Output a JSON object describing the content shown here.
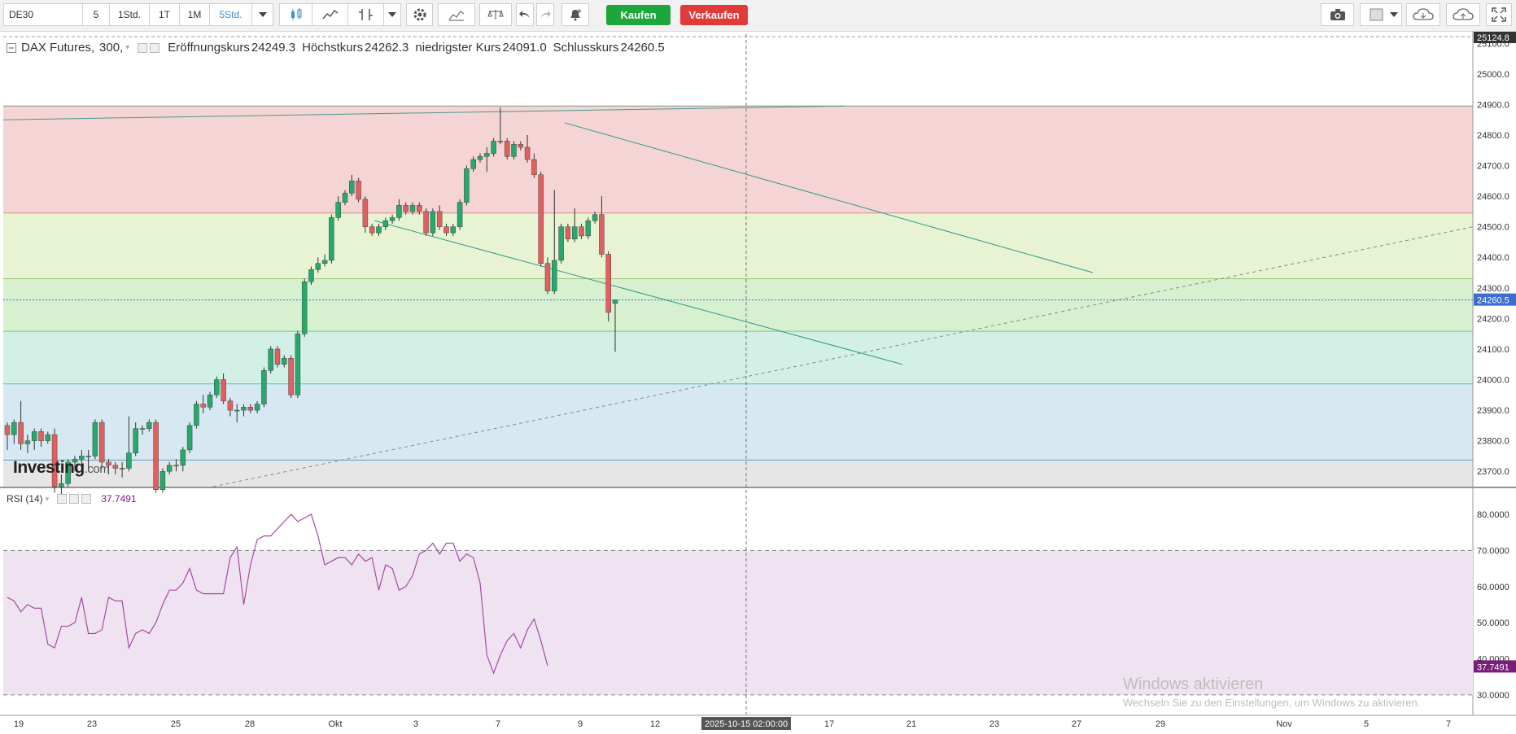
{
  "toolbar": {
    "symbol": "DE30",
    "intervals": [
      "5",
      "1Std.",
      "1T",
      "1M",
      "5Std."
    ],
    "buy_label": "Kaufen",
    "sell_label": "Verkaufen",
    "buy_color": "#1ea53c",
    "sell_color": "#e03a3a"
  },
  "legend": {
    "symbol": "DAX Futures,",
    "interval": "300,",
    "open_label": "Eröffnungskurs",
    "open": "24249.3",
    "high_label": "Höchstkurs",
    "high": "24262.3",
    "low_label": "niedrigster Kurs",
    "low": "24091.0",
    "close_label": "Schlusskurs",
    "close": "24260.5"
  },
  "rsi_legend": {
    "label": "RSI (14)",
    "value": "37.7491"
  },
  "brand": {
    "name": "Investing",
    "suffix": ".com"
  },
  "watermark": {
    "title": "Windows aktivieren",
    "subtitle": "Wechseln Sie zu den Einstellungen, um Windows zu aktivieren."
  },
  "chart_data": {
    "type": "candlestick",
    "colors": {
      "up": "#26a96c",
      "down": "#e35f5f"
    },
    "price_axis": {
      "ylim": [
        23650,
        25130
      ],
      "ticks": [
        "25100.0",
        "25000.0",
        "24900.0",
        "24800.0",
        "24700.0",
        "24600.0",
        "24500.0",
        "24400.0",
        "24300.0",
        "24200.0",
        "24100.0",
        "24000.0",
        "23900.0",
        "23800.0",
        "23700.0"
      ],
      "top_label": "25124.8",
      "last_price_label": "24260.5"
    },
    "rsi_axis": {
      "ylim": [
        25,
        87
      ],
      "ticks": [
        "80.0000",
        "70.0000",
        "60.0000",
        "50.0000",
        "40.0000",
        "30.0000"
      ],
      "last_label": "37.7491",
      "upper_level": 70,
      "lower_level": 30
    },
    "x_axis": {
      "labels": [
        "19",
        "23",
        "25",
        "28",
        "Okt",
        "3",
        "7",
        "9",
        "12",
        "17",
        "21",
        "23",
        "27",
        "29",
        "Nov",
        "5",
        "7"
      ],
      "crosshair_label": "2025-10-15 02:00:00"
    },
    "fib_levels": [
      24895,
      24545,
      24330,
      24158,
      23986,
      23737
    ],
    "fib_zone_colors": [
      "#f4d4d4",
      "#e8f3d3",
      "#d6f0d0",
      "#d2f0e6",
      "#d6e8f2",
      "#e6e6e6"
    ],
    "candles": [
      [
        23850,
        23820,
        23860,
        23770
      ],
      [
        23820,
        23860,
        23870,
        23790
      ],
      [
        23860,
        23790,
        23930,
        23770
      ],
      [
        23790,
        23800,
        23820,
        23760
      ],
      [
        23800,
        23830,
        23840,
        23770
      ],
      [
        23830,
        23800,
        23840,
        23780
      ],
      [
        23800,
        23820,
        23830,
        23790
      ],
      [
        23820,
        23650,
        23840,
        23630
      ],
      [
        23650,
        23660,
        23690,
        23620
      ],
      [
        23660,
        23730,
        23740,
        23650
      ],
      [
        23730,
        23740,
        23750,
        23700
      ],
      [
        23740,
        23750,
        23770,
        23720
      ],
      [
        23750,
        23750,
        23770,
        23700
      ],
      [
        23750,
        23860,
        23870,
        23740
      ],
      [
        23860,
        23730,
        23870,
        23710
      ],
      [
        23730,
        23720,
        23740,
        23690
      ],
      [
        23720,
        23710,
        23730,
        23690
      ],
      [
        23710,
        23710,
        23730,
        23680
      ],
      [
        23710,
        23760,
        23880,
        23700
      ],
      [
        23760,
        23840,
        23860,
        23750
      ],
      [
        23840,
        23840,
        23850,
        23820
      ],
      [
        23840,
        23860,
        23870,
        23830
      ],
      [
        23860,
        23640,
        23870,
        23630
      ],
      [
        23640,
        23700,
        23710,
        23630
      ],
      [
        23700,
        23720,
        23730,
        23690
      ],
      [
        23720,
        23720,
        23740,
        23700
      ],
      [
        23720,
        23770,
        23780,
        23700
      ],
      [
        23770,
        23850,
        23860,
        23760
      ],
      [
        23850,
        23920,
        23930,
        23840
      ],
      [
        23920,
        23910,
        23950,
        23890
      ],
      [
        23910,
        23950,
        23960,
        23900
      ],
      [
        23950,
        24000,
        24010,
        23940
      ],
      [
        24000,
        23930,
        24020,
        23920
      ],
      [
        23930,
        23900,
        23940,
        23880
      ],
      [
        23900,
        23900,
        23920,
        23860
      ],
      [
        23900,
        23910,
        23920,
        23880
      ],
      [
        23910,
        23900,
        23920,
        23890
      ],
      [
        23900,
        23920,
        23930,
        23890
      ],
      [
        23920,
        24030,
        24040,
        23910
      ],
      [
        24030,
        24100,
        24110,
        24020
      ],
      [
        24100,
        24050,
        24110,
        24040
      ],
      [
        24050,
        24070,
        24080,
        24040
      ],
      [
        24070,
        23950,
        24080,
        23940
      ],
      [
        23950,
        24150,
        24160,
        23940
      ],
      [
        24150,
        24320,
        24330,
        24140
      ],
      [
        24320,
        24360,
        24370,
        24310
      ],
      [
        24360,
        24380,
        24400,
        24350
      ],
      [
        24380,
        24390,
        24410,
        24370
      ],
      [
        24390,
        24530,
        24540,
        24380
      ],
      [
        24530,
        24580,
        24600,
        24520
      ],
      [
        24580,
        24610,
        24620,
        24570
      ],
      [
        24610,
        24650,
        24670,
        24600
      ],
      [
        24650,
        24590,
        24660,
        24580
      ],
      [
        24590,
        24500,
        24600,
        24480
      ],
      [
        24500,
        24480,
        24510,
        24470
      ],
      [
        24480,
        24500,
        24510,
        24470
      ],
      [
        24500,
        24520,
        24530,
        24490
      ],
      [
        24520,
        24530,
        24540,
        24510
      ],
      [
        24530,
        24570,
        24590,
        24520
      ],
      [
        24570,
        24550,
        24580,
        24540
      ],
      [
        24550,
        24570,
        24580,
        24540
      ],
      [
        24570,
        24550,
        24580,
        24540
      ],
      [
        24550,
        24480,
        24560,
        24470
      ],
      [
        24480,
        24550,
        24560,
        24470
      ],
      [
        24550,
        24500,
        24570,
        24490
      ],
      [
        24500,
        24480,
        24510,
        24470
      ],
      [
        24480,
        24500,
        24510,
        24470
      ],
      [
        24500,
        24580,
        24590,
        24490
      ],
      [
        24580,
        24690,
        24700,
        24570
      ],
      [
        24690,
        24720,
        24730,
        24680
      ],
      [
        24720,
        24730,
        24740,
        24710
      ],
      [
        24730,
        24740,
        24760,
        24680
      ],
      [
        24740,
        24780,
        24790,
        24730
      ],
      [
        24780,
        24780,
        24890,
        24770
      ],
      [
        24780,
        24730,
        24790,
        24720
      ],
      [
        24730,
        24770,
        24780,
        24720
      ],
      [
        24770,
        24760,
        24780,
        24750
      ],
      [
        24760,
        24720,
        24800,
        24710
      ],
      [
        24720,
        24670,
        24740,
        24660
      ],
      [
        24670,
        24380,
        24680,
        24370
      ],
      [
        24380,
        24290,
        24400,
        24280
      ],
      [
        24290,
        24390,
        24620,
        24280
      ],
      [
        24390,
        24500,
        24510,
        24380
      ],
      [
        24500,
        24460,
        24510,
        24450
      ],
      [
        24460,
        24500,
        24560,
        24450
      ],
      [
        24500,
        24470,
        24510,
        24460
      ],
      [
        24470,
        24520,
        24530,
        24460
      ],
      [
        24520,
        24540,
        24550,
        24510
      ],
      [
        24540,
        24410,
        24600,
        24400
      ],
      [
        24410,
        24220,
        24420,
        24190
      ],
      [
        24249.3,
        24260.5,
        24262.3,
        24091.0
      ]
    ],
    "rsi": [
      57,
      56,
      53,
      55,
      54,
      54,
      44,
      43,
      49,
      49,
      50,
      57,
      47,
      47,
      48,
      57,
      56,
      56,
      43,
      47,
      48,
      47,
      50,
      55,
      59,
      59,
      61,
      65,
      59,
      58,
      58,
      58,
      58,
      68,
      71,
      55,
      66,
      73,
      74,
      74,
      76,
      78,
      80,
      78,
      79,
      80,
      74,
      66,
      67,
      68,
      68,
      66,
      69,
      67,
      68,
      59,
      66,
      65,
      59,
      60,
      63,
      69,
      70,
      72,
      69,
      72,
      72,
      67,
      69,
      68,
      61,
      41,
      36,
      41,
      45,
      47,
      43,
      48,
      51,
      45,
      38
    ]
  }
}
